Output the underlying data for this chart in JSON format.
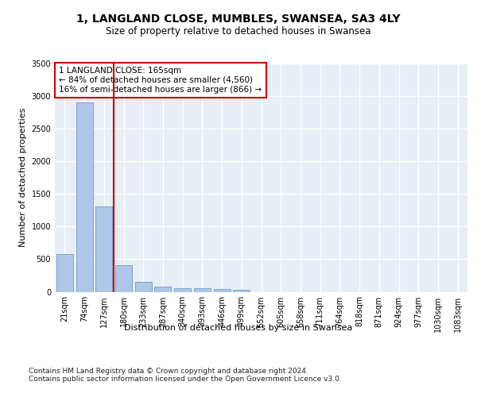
{
  "title": "1, LANGLAND CLOSE, MUMBLES, SWANSEA, SA3 4LY",
  "subtitle": "Size of property relative to detached houses in Swansea",
  "xlabel": "Distribution of detached houses by size in Swansea",
  "ylabel": "Number of detached properties",
  "categories": [
    "21sqm",
    "74sqm",
    "127sqm",
    "180sqm",
    "233sqm",
    "287sqm",
    "340sqm",
    "393sqm",
    "446sqm",
    "499sqm",
    "552sqm",
    "605sqm",
    "658sqm",
    "711sqm",
    "764sqm",
    "818sqm",
    "871sqm",
    "924sqm",
    "977sqm",
    "1030sqm",
    "1083sqm"
  ],
  "values": [
    575,
    2900,
    1310,
    410,
    155,
    80,
    60,
    55,
    45,
    35,
    0,
    0,
    0,
    0,
    0,
    0,
    0,
    0,
    0,
    0,
    0
  ],
  "bar_color": "#aec6e8",
  "bar_edge_color": "#5a8fc2",
  "vline_color": "#cc0000",
  "annotation_text": "1 LANGLAND CLOSE: 165sqm\n← 84% of detached houses are smaller (4,560)\n16% of semi-detached houses are larger (866) →",
  "annotation_box_color": "#ffffff",
  "annotation_box_edge": "#cc0000",
  "ylim": [
    0,
    3500
  ],
  "yticks": [
    0,
    500,
    1000,
    1500,
    2000,
    2500,
    3000,
    3500
  ],
  "background_color": "#e8eef5",
  "grid_color": "#ffffff",
  "footer": "Contains HM Land Registry data © Crown copyright and database right 2024.\nContains public sector information licensed under the Open Government Licence v3.0.",
  "title_fontsize": 10,
  "subtitle_fontsize": 8.5,
  "axis_label_fontsize": 8,
  "tick_fontsize": 7,
  "annotation_fontsize": 7.5,
  "footer_fontsize": 6.5
}
